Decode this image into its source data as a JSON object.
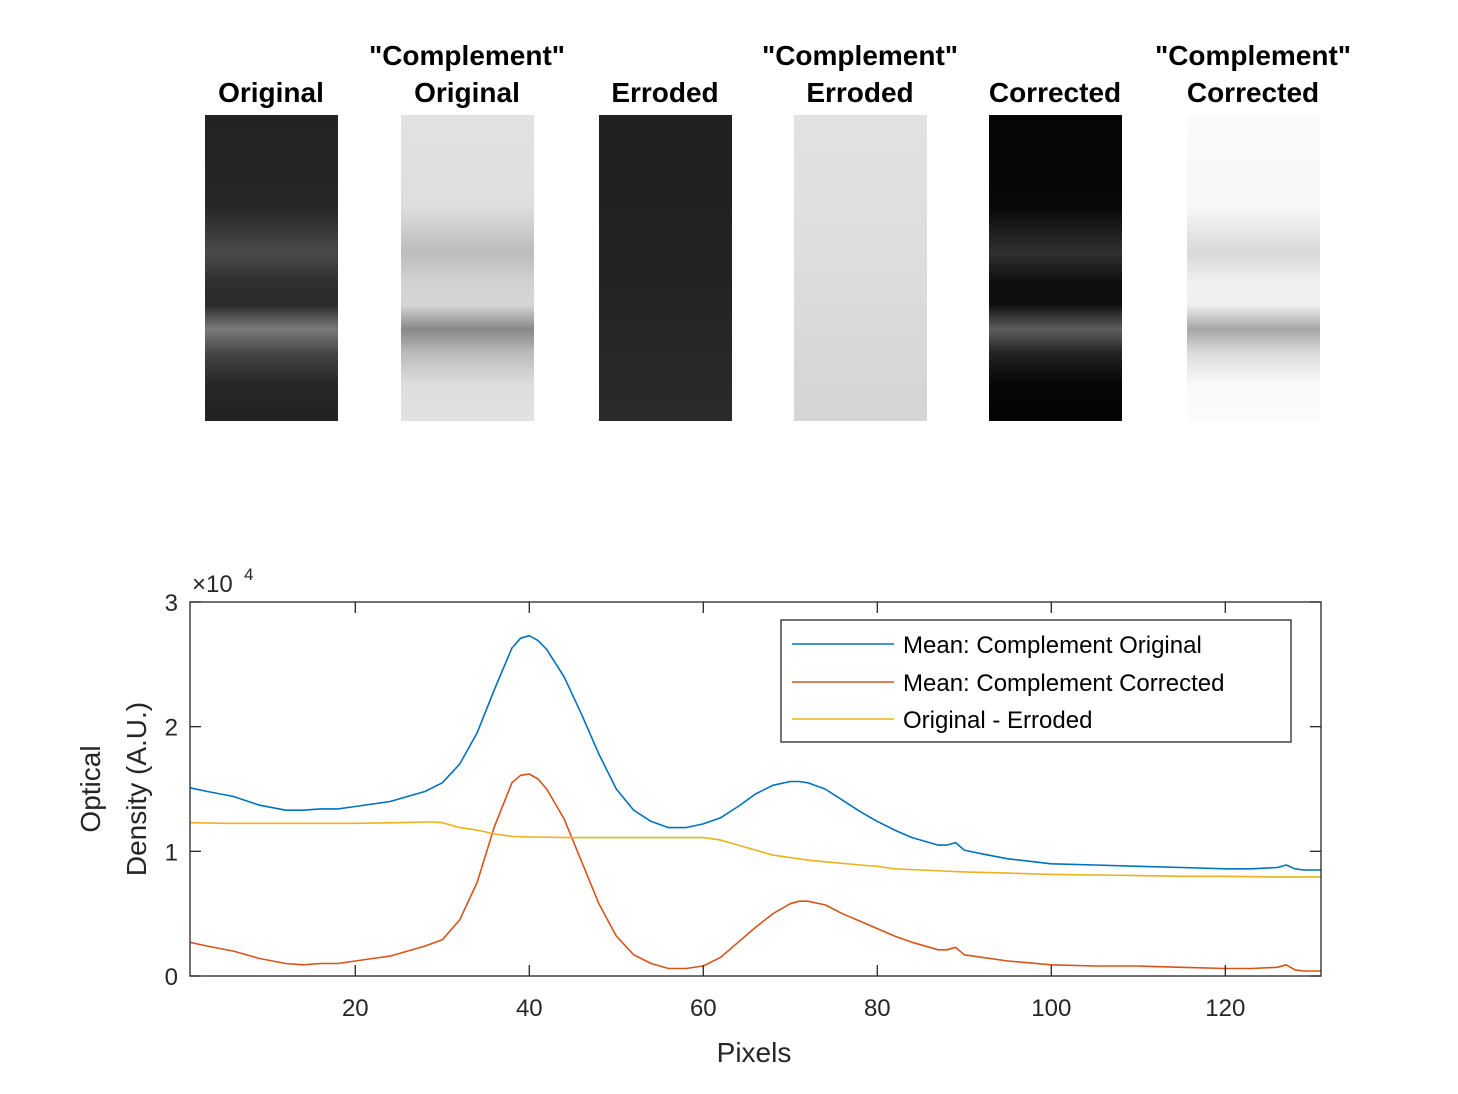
{
  "panels": [
    {
      "title_line1": "",
      "title_line2": "Original"
    },
    {
      "title_line1": "\"Complement\"",
      "title_line2": "Original"
    },
    {
      "title_line1": "",
      "title_line2": "Erroded"
    },
    {
      "title_line1": "\"Complement\"",
      "title_line2": "Erroded"
    },
    {
      "title_line1": "",
      "title_line2": "Corrected"
    },
    {
      "title_line1": "\"Complement\"",
      "title_line2": "Corrected"
    }
  ],
  "chart_data": {
    "type": "line",
    "xlabel": "Pixels",
    "ylabel_line1": "Optical",
    "ylabel_line2": "Density (A.U.)",
    "exponent_label": "×10",
    "exponent_power": "4",
    "xlim": [
      1,
      131
    ],
    "ylim": [
      0,
      30000
    ],
    "xticks": [
      20,
      40,
      60,
      80,
      100,
      120
    ],
    "yticks": [
      0,
      1,
      2,
      3
    ],
    "ytick_scale": 10000,
    "legend_position": "top-right",
    "series": [
      {
        "name": "Mean: Complement Original",
        "color": "#0072BD",
        "x": [
          1,
          3,
          6,
          9,
          12,
          14,
          16,
          18,
          20,
          22,
          24,
          26,
          28,
          30,
          32,
          34,
          36,
          38,
          39,
          40,
          41,
          42,
          44,
          46,
          48,
          50,
          52,
          54,
          56,
          58,
          60,
          62,
          64,
          66,
          68,
          70,
          71,
          72,
          74,
          76,
          78,
          80,
          82,
          84,
          86,
          87,
          88,
          89,
          90,
          92,
          95,
          100,
          105,
          110,
          115,
          120,
          123,
          126,
          127,
          128,
          129,
          131
        ],
        "y": [
          15100,
          14800,
          14400,
          13700,
          13300,
          13300,
          13400,
          13400,
          13600,
          13800,
          14000,
          14400,
          14800,
          15500,
          17000,
          19500,
          23000,
          26300,
          27100,
          27300,
          26900,
          26200,
          24000,
          21000,
          17800,
          15000,
          13300,
          12400,
          11900,
          11900,
          12200,
          12700,
          13600,
          14600,
          15300,
          15600,
          15600,
          15500,
          15000,
          14100,
          13200,
          12400,
          11700,
          11100,
          10700,
          10500,
          10500,
          10700,
          10100,
          9800,
          9400,
          9000,
          8900,
          8800,
          8700,
          8600,
          8600,
          8700,
          8900,
          8600,
          8500,
          8500
        ]
      },
      {
        "name": "Mean: Complement Corrected",
        "color": "#D95319",
        "x": [
          1,
          3,
          6,
          9,
          12,
          14,
          16,
          18,
          20,
          22,
          24,
          26,
          28,
          30,
          32,
          34,
          36,
          38,
          39,
          40,
          41,
          42,
          44,
          46,
          48,
          50,
          52,
          54,
          56,
          58,
          60,
          62,
          64,
          66,
          68,
          70,
          71,
          72,
          74,
          76,
          78,
          80,
          82,
          84,
          86,
          87,
          88,
          89,
          90,
          92,
          95,
          100,
          105,
          110,
          115,
          120,
          123,
          126,
          127,
          128,
          129,
          131
        ],
        "y": [
          2700,
          2400,
          2000,
          1400,
          1000,
          900,
          1000,
          1000,
          1200,
          1400,
          1600,
          2000,
          2400,
          2900,
          4500,
          7500,
          12000,
          15500,
          16100,
          16200,
          15800,
          15000,
          12600,
          9200,
          5800,
          3200,
          1700,
          1000,
          600,
          600,
          800,
          1500,
          2700,
          3900,
          5000,
          5800,
          6000,
          6000,
          5700,
          5000,
          4400,
          3800,
          3200,
          2700,
          2300,
          2100,
          2100,
          2300,
          1700,
          1500,
          1200,
          900,
          800,
          800,
          700,
          600,
          600,
          700,
          900,
          500,
          400,
          400
        ]
      },
      {
        "name": "Original - Erroded",
        "color": "#EDB120",
        "x": [
          1,
          5,
          10,
          15,
          20,
          25,
          28,
          29,
          30,
          32,
          34,
          36,
          38,
          40,
          45,
          50,
          55,
          58,
          60,
          62,
          64,
          66,
          68,
          70,
          72,
          75,
          78,
          80,
          82,
          85,
          90,
          95,
          100,
          105,
          110,
          115,
          120,
          125,
          131
        ],
        "y": [
          12300,
          12250,
          12250,
          12250,
          12250,
          12300,
          12350,
          12350,
          12300,
          11900,
          11700,
          11400,
          11200,
          11150,
          11100,
          11100,
          11100,
          11100,
          11100,
          10900,
          10500,
          10100,
          9700,
          9500,
          9300,
          9100,
          8900,
          8800,
          8600,
          8500,
          8350,
          8250,
          8150,
          8100,
          8050,
          8000,
          8000,
          7950,
          7950
        ]
      }
    ]
  }
}
